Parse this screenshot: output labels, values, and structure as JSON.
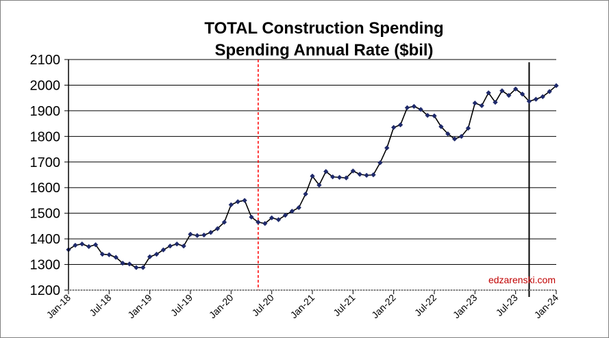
{
  "chart_data": {
    "type": "line",
    "title": "TOTAL Construction Spending",
    "subtitle": "Spending Annual Rate ($bil)",
    "xlabel": "",
    "ylabel": "",
    "ylim": [
      1200,
      2100
    ],
    "yticks": [
      1200,
      1300,
      1400,
      1500,
      1600,
      1700,
      1800,
      1900,
      2000,
      2100
    ],
    "grid": "horizontal",
    "x_tick_labels": [
      "Jan-18",
      "Jul-18",
      "Jan-19",
      "Jul-19",
      "Jan-20",
      "Jul-20",
      "Jan-21",
      "Jul-21",
      "Jan-22",
      "Jul-22",
      "Jan-23",
      "Jul-23",
      "Jan-24"
    ],
    "x": [
      "Jan-18",
      "Feb-18",
      "Mar-18",
      "Apr-18",
      "May-18",
      "Jun-18",
      "Jul-18",
      "Aug-18",
      "Sep-18",
      "Oct-18",
      "Nov-18",
      "Dec-18",
      "Jan-19",
      "Feb-19",
      "Mar-19",
      "Apr-19",
      "May-19",
      "Jun-19",
      "Jul-19",
      "Aug-19",
      "Sep-19",
      "Oct-19",
      "Nov-19",
      "Dec-19",
      "Jan-20",
      "Feb-20",
      "Mar-20",
      "Apr-20",
      "May-20",
      "Jun-20",
      "Jul-20",
      "Aug-20",
      "Sep-20",
      "Oct-20",
      "Nov-20",
      "Dec-20",
      "Jan-21",
      "Feb-21",
      "Mar-21",
      "Apr-21",
      "May-21",
      "Jun-21",
      "Jul-21",
      "Aug-21",
      "Sep-21",
      "Oct-21",
      "Nov-21",
      "Dec-21",
      "Jan-22",
      "Feb-22",
      "Mar-22",
      "Apr-22",
      "May-22",
      "Jun-22",
      "Jul-22",
      "Aug-22",
      "Sep-22",
      "Oct-22",
      "Nov-22",
      "Dec-22",
      "Jan-23",
      "Feb-23",
      "Mar-23",
      "Apr-23",
      "May-23",
      "Jun-23",
      "Jul-23",
      "Aug-23",
      "Sep-23",
      "Oct-23",
      "Nov-23",
      "Dec-23",
      "Jan-24"
    ],
    "series": [
      {
        "color": "#000000",
        "marker_color": "#1f2a6b",
        "values": [
          1358,
          1375,
          1380,
          1370,
          1377,
          1340,
          1338,
          1328,
          1305,
          1302,
          1288,
          1288,
          1330,
          1340,
          1357,
          1372,
          1380,
          1372,
          1418,
          1413,
          1415,
          1425,
          1440,
          1465,
          1533,
          1545,
          1550,
          1485,
          1465,
          1460,
          1482,
          1475,
          1492,
          1508,
          1522,
          1575,
          1645,
          1610,
          1663,
          1642,
          1640,
          1638,
          1665,
          1652,
          1648,
          1650,
          1697,
          1755,
          1835,
          1845,
          1912,
          1917,
          1905,
          1882,
          1880,
          1838,
          1810,
          1790,
          1800,
          1832,
          1930,
          1920,
          1970,
          1933,
          1978,
          1960,
          1985,
          1965,
          1937,
          1945,
          1955,
          1975,
          1998
        ]
      }
    ],
    "reference_lines": [
      {
        "x": "May-20",
        "color": "#ff0000",
        "style": "dashed"
      },
      {
        "x": "Sep-23",
        "color": "#000000",
        "style": "solid"
      }
    ],
    "watermark": "edzarenski.com"
  }
}
